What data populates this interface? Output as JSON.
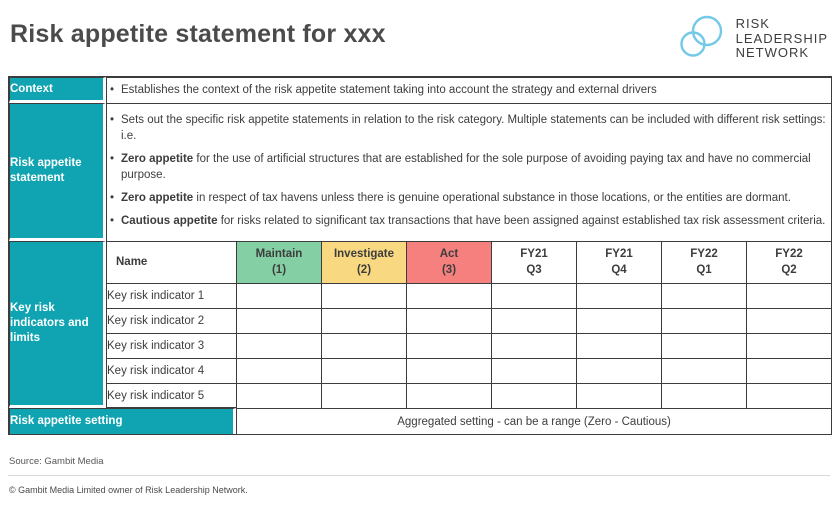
{
  "page": {
    "title": "Risk appetite statement for xxx",
    "source": "Source: Gambit Media",
    "copyright": "© Gambit Media Limited owner of Risk Leadership Network."
  },
  "logo": {
    "lines": [
      "RISK",
      "LEADERSHIP",
      "NETWORK"
    ],
    "circle_color": "#74c8e8",
    "text_color": "#3d3d3d"
  },
  "colors": {
    "teal": "#10a3b1",
    "green": "#84cfa3",
    "amber": "#f8d981",
    "red": "#f5807e",
    "border": "#3c3c3c"
  },
  "table": {
    "context": {
      "label": "Context",
      "bullets": [
        {
          "lead": "",
          "text": "Establishes the context of the risk appetite statement taking into account the strategy and external drivers"
        }
      ]
    },
    "statement": {
      "label": "Risk appetite statement",
      "bullets": [
        {
          "lead": "",
          "text": "Sets out the specific risk appetite statements in relation to the risk category. Multiple statements can be included with different risk settings: i.e."
        },
        {
          "lead": "Zero appetite",
          "text": "for the use of artificial structures that are established for the sole purpose of avoiding paying tax and have no commercial purpose."
        },
        {
          "lead": "Zero appetite",
          "text": "in respect of tax havens unless there is genuine operational substance in those locations, or the entities are dormant."
        },
        {
          "lead": "Cautious appetite",
          "text": "for risks related to significant tax transactions that have been assigned against established tax risk assessment criteria."
        }
      ]
    },
    "kri": {
      "label": "Key risk indicators and limits",
      "columns": [
        {
          "title": "Name",
          "subtitle": "",
          "bg": "#ffffff"
        },
        {
          "title": "Maintain",
          "subtitle": "(1)",
          "bg": "#84cfa3"
        },
        {
          "title": "Investigate",
          "subtitle": "(2)",
          "bg": "#f8d981"
        },
        {
          "title": "Act",
          "subtitle": "(3)",
          "bg": "#f5807e"
        },
        {
          "title": "FY21",
          "subtitle": "Q3",
          "bg": "#ffffff"
        },
        {
          "title": "FY21",
          "subtitle": "Q4",
          "bg": "#ffffff"
        },
        {
          "title": "FY22",
          "subtitle": "Q1",
          "bg": "#ffffff"
        },
        {
          "title": "FY22",
          "subtitle": "Q2",
          "bg": "#ffffff"
        }
      ],
      "rows": [
        "Key risk indicator 1",
        "Key risk indicator 2",
        "Key risk indicator 3",
        "Key risk indicator 4",
        "Key risk indicator 5"
      ]
    },
    "setting": {
      "label": "Risk appetite setting",
      "value": "Aggregated setting - can be a range (Zero - Cautious)"
    }
  }
}
